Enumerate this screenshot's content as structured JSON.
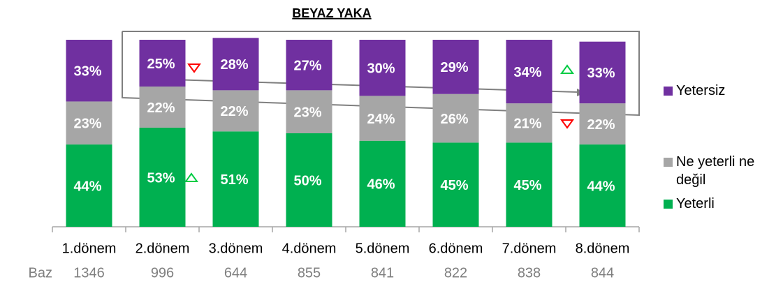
{
  "chart_data": {
    "type": "stacked_bar",
    "title": "BEYAZ YAKA",
    "categories": [
      "1.dönem",
      "2.dönem",
      "3.dönem",
      "4.dönem",
      "5.dönem",
      "6.dönem",
      "7.dönem",
      "8.dönem"
    ],
    "ylim": [
      0,
      100
    ],
    "series": [
      {
        "name": "Yeterli",
        "color": "#00b050",
        "values": [
          44,
          53,
          51,
          50,
          46,
          45,
          45,
          44
        ],
        "value_labels": [
          "44%",
          "53%",
          "51%",
          "50%",
          "46%",
          "45%",
          "45%",
          "44%"
        ]
      },
      {
        "name": "Ne yeterli ne değil",
        "color": "#a6a6a6",
        "values": [
          23,
          22,
          22,
          23,
          24,
          26,
          21,
          22
        ],
        "value_labels": [
          "23%",
          "22%",
          "22%",
          "23%",
          "24%",
          "26%",
          "21%",
          "22%"
        ]
      },
      {
        "name": "Yetersiz",
        "color": "#7030a0",
        "values": [
          33,
          25,
          28,
          27,
          30,
          29,
          34,
          33
        ],
        "value_labels": [
          "33%",
          "25%",
          "28%",
          "27%",
          "30%",
          "29%",
          "34%",
          "33%"
        ]
      }
    ],
    "base": {
      "label": "Baz",
      "values": [
        1346,
        996,
        644,
        855,
        841,
        822,
        838,
        844
      ]
    }
  }
}
